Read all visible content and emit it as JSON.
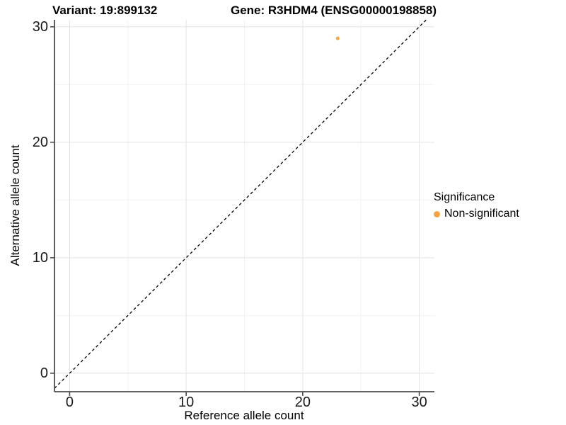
{
  "page": {
    "background": "#FFFFFF"
  },
  "chart_data": {
    "type": "scatter",
    "title_left": "Variant: 19:899132",
    "title_right": "Gene: R3HDM4 (ENSG00000198858)",
    "xlabel": "Reference allele count",
    "ylabel": "Alternative allele count",
    "xlim": [
      -1.3,
      31.3
    ],
    "ylim": [
      -1.6,
      30.6
    ],
    "x_ticks": [
      0,
      10,
      20,
      30
    ],
    "y_ticks": [
      0,
      10,
      20,
      30
    ],
    "x_minor_ticks": [
      5,
      15,
      25
    ],
    "y_minor_ticks": [
      5,
      15,
      25
    ],
    "grid": "major and minor, light gray on white",
    "points": [
      {
        "x": 23,
        "y": 29,
        "series": "Non-significant"
      }
    ],
    "reference_line": {
      "kind": "identity y=x",
      "style": "dashed",
      "color": "#000000"
    },
    "legend": {
      "title": "Significance",
      "position": "right",
      "entries": [
        {
          "label": "Non-significant",
          "color": "#F9A242"
        }
      ]
    },
    "colors": {
      "point": "#F9A242",
      "grid_major": "#E4E4E4",
      "grid_minor": "#F2F2F2",
      "axis_line": "#4D4D4D",
      "text": "#000000"
    }
  }
}
